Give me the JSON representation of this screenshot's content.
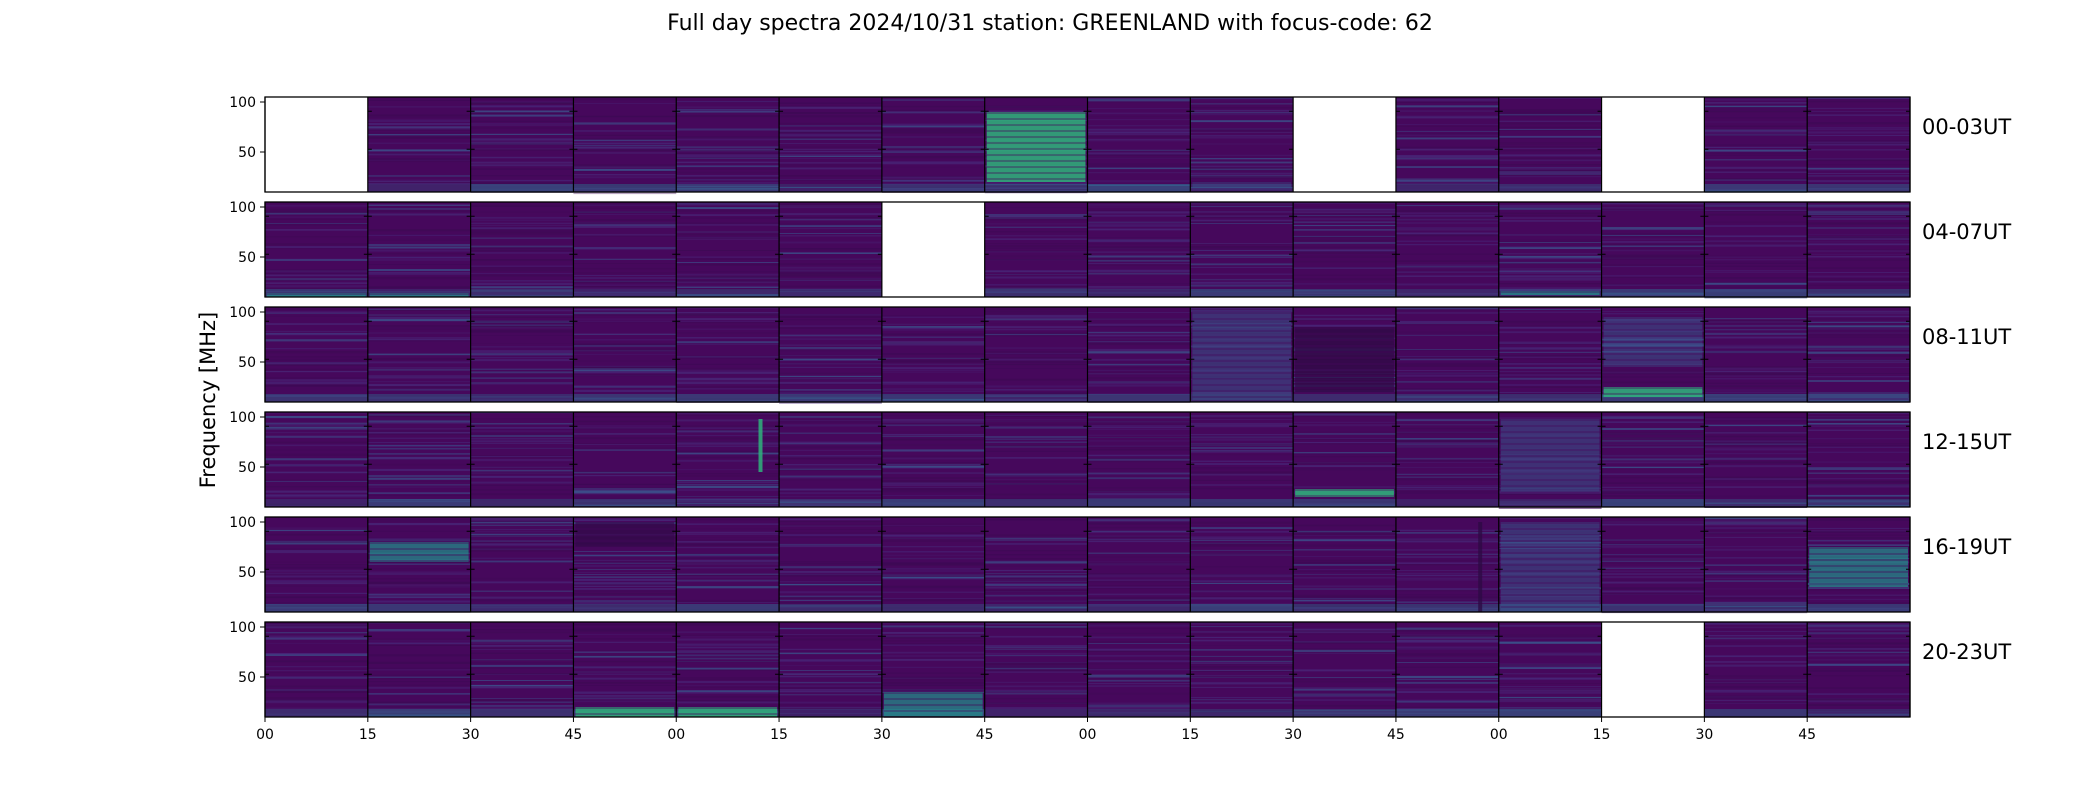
{
  "figure": {
    "title": "Full day spectra 2024/10/31 station: GREENLAND with focus-code: 62",
    "ylabel": "Frequency [MHz]"
  },
  "chart_data": {
    "type": "heatmap",
    "title": "Full day spectra 2024/10/31 station: GREENLAND with focus-code: 62",
    "ylabel": "Frequency [MHz]",
    "xlabel": "",
    "colormap": "viridis",
    "colors": {
      "background": "#46085c",
      "missing": "#ffffff",
      "bright": "#2fb37b"
    },
    "ylim": [
      10,
      105
    ],
    "yticks": [
      50,
      100
    ],
    "x_ticks": [
      "00",
      "15",
      "30",
      "45",
      "00",
      "15",
      "30",
      "45",
      "00",
      "15",
      "30",
      "45",
      "00",
      "15",
      "30",
      "45"
    ],
    "panels_per_row": 16,
    "panel_minutes": 15,
    "rows": [
      {
        "label": "00-03UT",
        "missing": [
          0,
          10,
          13
        ],
        "features": [
          {
            "panel": 7,
            "type": "band",
            "from": 20,
            "to": 90,
            "intensity": 0.75
          },
          {
            "panel": 9,
            "type": "band",
            "from": 12,
            "to": 20,
            "intensity": 0.35
          }
        ]
      },
      {
        "label": "04-07UT",
        "missing": [
          6
        ],
        "features": [
          {
            "panel": 0,
            "type": "band",
            "from": 10,
            "to": 14,
            "intensity": 0.6
          },
          {
            "panel": 1,
            "type": "band",
            "from": 10,
            "to": 14,
            "intensity": 0.6
          },
          {
            "panel": 12,
            "type": "band",
            "from": 12,
            "to": 16,
            "intensity": 0.4
          }
        ]
      },
      {
        "label": "08-11UT",
        "missing": [],
        "features": [
          {
            "panel": 9,
            "type": "band",
            "from": 12,
            "to": 100,
            "intensity": 0.35
          },
          {
            "panel": 10,
            "type": "band",
            "from": 20,
            "to": 85,
            "intensity": -0.4
          },
          {
            "panel": 13,
            "type": "band",
            "from": 15,
            "to": 25,
            "intensity": 0.85
          },
          {
            "panel": 13,
            "type": "band",
            "from": 45,
            "to": 95,
            "intensity": 0.3
          },
          {
            "panel": 15,
            "type": "band",
            "from": 10,
            "to": 20,
            "intensity": 0.35
          }
        ]
      },
      {
        "label": "12-15UT",
        "missing": [],
        "features": [
          {
            "panel": 4,
            "type": "line",
            "from": 45,
            "to": 98,
            "intensity": 0.8
          },
          {
            "panel": 10,
            "type": "band",
            "from": 20,
            "to": 28,
            "intensity": 0.8
          },
          {
            "panel": 12,
            "type": "band",
            "from": 25,
            "to": 98,
            "intensity": 0.25
          }
        ]
      },
      {
        "label": "16-19UT",
        "missing": [],
        "features": [
          {
            "panel": 1,
            "type": "band",
            "from": 60,
            "to": 80,
            "intensity": 0.45
          },
          {
            "panel": 3,
            "type": "band",
            "from": 75,
            "to": 100,
            "intensity": -0.3
          },
          {
            "panel": 11,
            "type": "line",
            "from": 10,
            "to": 100,
            "intensity": -0.5
          },
          {
            "panel": 12,
            "type": "band",
            "from": 10,
            "to": 100,
            "intensity": 0.2
          },
          {
            "panel": 15,
            "type": "band",
            "from": 35,
            "to": 75,
            "intensity": 0.5
          }
        ]
      },
      {
        "label": "20-23UT",
        "missing": [
          13
        ],
        "features": [
          {
            "panel": 3,
            "type": "band",
            "from": 10,
            "to": 20,
            "intensity": 0.8
          },
          {
            "panel": 4,
            "type": "band",
            "from": 10,
            "to": 20,
            "intensity": 0.8
          },
          {
            "panel": 6,
            "type": "band",
            "from": 10,
            "to": 35,
            "intensity": 0.5
          }
        ]
      }
    ]
  }
}
